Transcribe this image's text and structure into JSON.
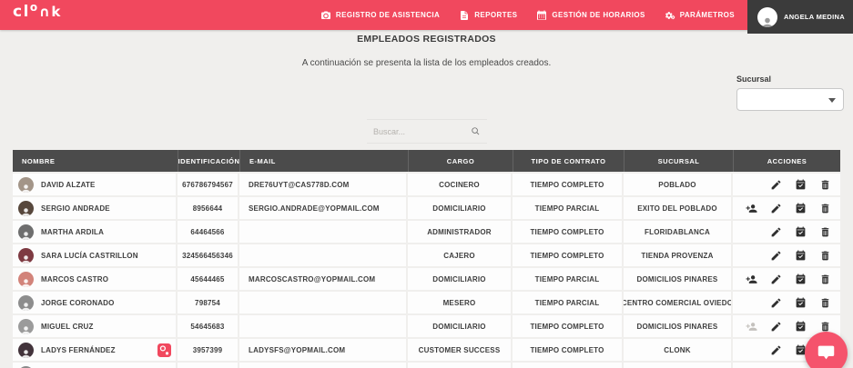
{
  "colors": {
    "primary": "#F1485E",
    "table_header_bg": "#4B4B4B",
    "user_chip_bg": "#3B3B3B",
    "page_bg": "#F0EFED"
  },
  "brand": {
    "name": "clonk",
    "logo_parts": {
      "left": "cl",
      "raised": "o",
      "right": "∩k"
    }
  },
  "nav": {
    "items": [
      {
        "id": "registro-de-asistencia",
        "icon": "camera-icon",
        "label": "REGISTRO DE ASISTENCIA"
      },
      {
        "id": "reportes",
        "icon": "report-icon",
        "label": "REPORTES"
      },
      {
        "id": "gestion-de-horarios",
        "icon": "calendar-icon",
        "label": "GESTIÓN DE HORARIOS"
      },
      {
        "id": "parametros",
        "icon": "gears-icon",
        "label": "PARÁMETROS"
      }
    ],
    "user": {
      "name": "ANGELA MEDINA"
    }
  },
  "page": {
    "title": "EMPLEADOS REGISTRADOS",
    "subtitle": "A continuación se presenta la lista de los empleados creados.",
    "branch_filter": {
      "label": "Sucursal",
      "selected": ""
    },
    "search": {
      "placeholder": "Buscar..."
    }
  },
  "table": {
    "columns": [
      "NOMBRE",
      "IDENTIFICACIÓN",
      "E-MAIL",
      "CARGO",
      "TIPO DE CONTRATO",
      "SUCURSAL",
      "ACCIONES"
    ],
    "rows": [
      {
        "name": "DAVID ALZATE",
        "identification": "676786794567",
        "email": "DRE76UYT@CAS778D.COM",
        "position": "COCINERO",
        "contract_type": "TIEMPO COMPLETO",
        "branch": "POBLADO",
        "avatar_color": "#A39588",
        "badge": false,
        "actions": [
          {
            "type": "edit"
          },
          {
            "type": "schedule"
          },
          {
            "type": "delete"
          }
        ]
      },
      {
        "name": "SERGIO ANDRADE",
        "identification": "8956644",
        "email": "SERGIO.ANDRADE@YOPMAIL.COM",
        "position": "DOMICILIARIO",
        "contract_type": "TIEMPO PARCIAL",
        "branch": "EXITO DEL POBLADO",
        "avatar_color": "#57473C",
        "badge": false,
        "actions": [
          {
            "type": "add-user"
          },
          {
            "type": "edit"
          },
          {
            "type": "schedule"
          },
          {
            "type": "delete"
          }
        ]
      },
      {
        "name": "MARTHA ARDILA",
        "identification": "64464566",
        "email": "",
        "position": "ADMINISTRADOR",
        "contract_type": "TIEMPO COMPLETO",
        "branch": "FLORIDABLANCA",
        "avatar_color": "#6E6E6E",
        "badge": false,
        "actions": [
          {
            "type": "edit"
          },
          {
            "type": "schedule"
          },
          {
            "type": "delete"
          }
        ]
      },
      {
        "name": "SARA LUCÍA CASTRILLON",
        "identification": "324566456346",
        "email": "",
        "position": "CAJERO",
        "contract_type": "TIEMPO COMPLETO",
        "branch": "TIENDA PROVENZA",
        "avatar_color": "#7E3A42",
        "badge": false,
        "actions": [
          {
            "type": "edit"
          },
          {
            "type": "schedule"
          },
          {
            "type": "delete"
          }
        ]
      },
      {
        "name": "MARCOS CASTRO",
        "identification": "45644465",
        "email": "MARCOSCASTRO@YOPMAIL.COM",
        "position": "DOMICILIARIO",
        "contract_type": "TIEMPO PARCIAL",
        "branch": "DOMICILIOS PINARES",
        "avatar_color": "#D2837A",
        "badge": false,
        "actions": [
          {
            "type": "add-user"
          },
          {
            "type": "edit"
          },
          {
            "type": "schedule"
          },
          {
            "type": "delete"
          }
        ]
      },
      {
        "name": "JORGE CORONADO",
        "identification": "798754",
        "email": "",
        "position": "MESERO",
        "contract_type": "TIEMPO PARCIAL",
        "branch": "CENTRO COMERCIAL OVIEDO",
        "avatar_color": "#8D8D8D",
        "badge": false,
        "actions": [
          {
            "type": "edit"
          },
          {
            "type": "schedule"
          },
          {
            "type": "delete"
          }
        ]
      },
      {
        "name": "MIGUEL CRUZ",
        "identification": "54645683",
        "email": "",
        "position": "DOMICILIARIO",
        "contract_type": "TIEMPO COMPLETO",
        "branch": "DOMICILIOS PINARES",
        "avatar_color": "#9B9B9B",
        "badge": false,
        "actions": [
          {
            "type": "add-user",
            "disabled": true
          },
          {
            "type": "edit"
          },
          {
            "type": "schedule"
          },
          {
            "type": "delete"
          }
        ]
      },
      {
        "name": "LADYS FERNÁNDEZ",
        "identification": "3957399",
        "email": "LADYSFS@YOPMAIL.COM",
        "position": "CUSTOMER SUCCESS",
        "contract_type": "TIEMPO COMPLETO",
        "branch": "CLONK",
        "avatar_color": "#42333B",
        "badge": true,
        "actions": [
          {
            "type": "edit"
          },
          {
            "type": "schedule"
          },
          {
            "type": "delete"
          }
        ]
      },
      {
        "name": "",
        "identification": "",
        "email": "",
        "position": "",
        "contract_type": "",
        "branch": "",
        "avatar_color": "#8A8A8A",
        "badge": false,
        "partial": true,
        "actions": [
          {
            "type": "edit"
          },
          {
            "type": "schedule"
          },
          {
            "type": "delete"
          }
        ]
      }
    ]
  }
}
